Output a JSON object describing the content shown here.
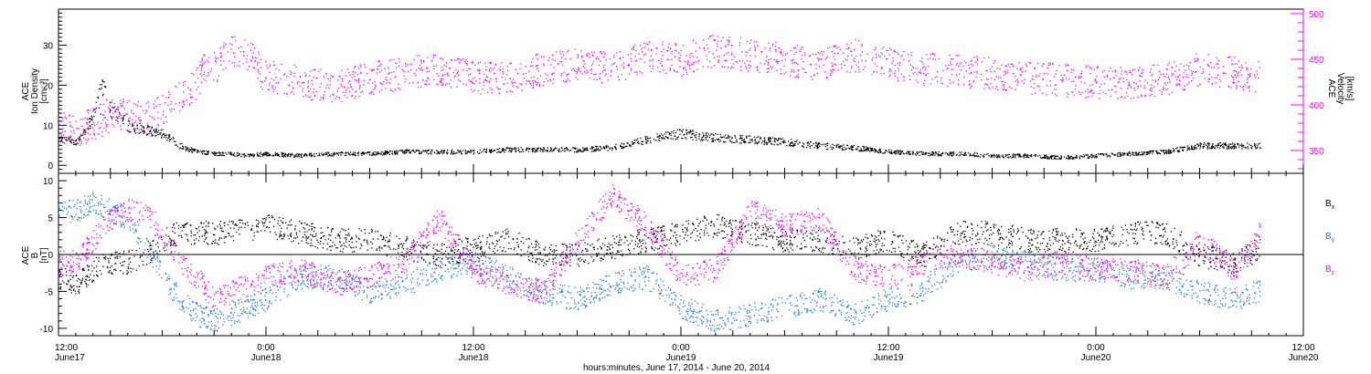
{
  "chart_data": [
    {
      "type": "scatter",
      "panel": "top",
      "xlabel": "hours:minutes, June 17, 2014 - June 20, 2014",
      "x_ticks": [
        {
          "time": "12:00",
          "date": "June17"
        },
        {
          "time": "0:00",
          "date": "June18"
        },
        {
          "time": "12:00",
          "date": "June18"
        },
        {
          "time": "0:00",
          "date": "June19"
        },
        {
          "time": "12:00",
          "date": "June19"
        },
        {
          "time": "0:00",
          "date": "June20"
        },
        {
          "time": "12:00",
          "date": "June20"
        }
      ],
      "xlim_hours": [
        0,
        72
      ],
      "ylabel_left": [
        "ACE",
        "Ion Density",
        "[cm⁻³]"
      ],
      "ylim_left": [
        -2,
        39
      ],
      "yticks_left": [
        0,
        10,
        20,
        30
      ],
      "ylabel_right": [
        "ACE",
        "Velocity",
        "[km/s]"
      ],
      "ylim_right": [
        325,
        505
      ],
      "yticks_right": [
        350,
        400,
        450,
        500
      ],
      "series": [
        {
          "axis": "left",
          "color": "#000000",
          "x": [
            0,
            1,
            2,
            2.5,
            3,
            4,
            5,
            6,
            7,
            8,
            9,
            10,
            11,
            12,
            14,
            16,
            18,
            20,
            22,
            24,
            26,
            28,
            30,
            32,
            34,
            36,
            38,
            40,
            42,
            44,
            46,
            48,
            50,
            52,
            54,
            56,
            58,
            60,
            62,
            64,
            66,
            68,
            69.5
          ],
          "y": [
            7,
            6,
            12,
            20,
            14,
            10,
            9,
            8,
            5,
            3.5,
            3,
            3,
            2.5,
            3,
            2.5,
            3,
            3,
            3.5,
            3.5,
            3.5,
            4,
            4,
            4,
            4.5,
            6.5,
            8,
            7,
            6.5,
            6,
            5,
            4.5,
            3.5,
            3,
            3,
            2.5,
            2.5,
            2,
            2.5,
            3,
            3.5,
            5,
            5,
            5
          ]
        },
        {
          "axis": "right",
          "color": "#ff00ff",
          "x": [
            0,
            1,
            2,
            3,
            4,
            5,
            6,
            7,
            8,
            8.5,
            9,
            10,
            11,
            12,
            13,
            14,
            16,
            18,
            20,
            22,
            24,
            26,
            28,
            30,
            32,
            34,
            36,
            38,
            40,
            42,
            44,
            46,
            47,
            48,
            50,
            52,
            54,
            56,
            58,
            60,
            62,
            64,
            66,
            68,
            69.5
          ],
          "y": [
            375,
            372,
            380,
            388,
            390,
            385,
            395,
            410,
            425,
            445,
            440,
            460,
            455,
            430,
            430,
            425,
            420,
            430,
            435,
            440,
            430,
            430,
            440,
            445,
            440,
            455,
            450,
            460,
            455,
            450,
            445,
            455,
            450,
            445,
            440,
            438,
            435,
            430,
            428,
            425,
            425,
            428,
            440,
            435,
            430
          ]
        }
      ]
    },
    {
      "type": "scatter",
      "panel": "bottom",
      "ylabel": [
        "ACE",
        "B",
        "[nT]"
      ],
      "ylim": [
        -11,
        11
      ],
      "yticks": [
        -10,
        -5,
        0,
        5,
        10
      ],
      "zero_line": true,
      "legend": [
        {
          "label": "B",
          "sub": "x",
          "color": "#000000"
        },
        {
          "label": "B",
          "sub": "y",
          "color": "#1e7bdc"
        },
        {
          "label": "B",
          "sub": "z",
          "color": "#ff00ff"
        }
      ],
      "series": [
        {
          "name": "Bx",
          "color": "#000000",
          "x": [
            0,
            1,
            2,
            3,
            4,
            5,
            6,
            7,
            8,
            10,
            12,
            14,
            16,
            18,
            20,
            22,
            24,
            26,
            28,
            30,
            32,
            34,
            36,
            38,
            40,
            42,
            44,
            46,
            48,
            50,
            52,
            54,
            56,
            58,
            60,
            62,
            64,
            66,
            68,
            69.5
          ],
          "y": [
            -3,
            -4,
            -2,
            -1,
            -1,
            0,
            2,
            3,
            3,
            3,
            4,
            3,
            2,
            2,
            1,
            0,
            1,
            2,
            0,
            0,
            1,
            2,
            3,
            4,
            3,
            2,
            2,
            1,
            2,
            0,
            3,
            3,
            2,
            2,
            2,
            3,
            3,
            0,
            -1,
            1
          ]
        },
        {
          "name": "By",
          "color": "#1e7bdc",
          "x": [
            0,
            1,
            2,
            3,
            4,
            5,
            6,
            7,
            8,
            9,
            10,
            12,
            14,
            16,
            18,
            20,
            22,
            24,
            26,
            28,
            30,
            32,
            34,
            36,
            38,
            40,
            42,
            44,
            46,
            48,
            50,
            52,
            54,
            56,
            58,
            60,
            62,
            64,
            66,
            68,
            69.5
          ],
          "y": [
            6,
            6,
            7,
            6,
            5,
            1,
            -3,
            -6,
            -8,
            -9,
            -8,
            -6,
            -3,
            -3,
            -5,
            -4,
            -2,
            -1,
            -3,
            -5,
            -6,
            -4,
            -3,
            -7,
            -9,
            -8,
            -7,
            -6,
            -8,
            -6,
            -5,
            -1,
            0,
            -1,
            -2,
            -2,
            -3,
            -3,
            -5,
            -6,
            -5
          ]
        },
        {
          "name": "Bz",
          "color": "#ff00ff",
          "x": [
            0,
            1,
            2,
            3,
            4,
            5,
            6,
            7,
            8,
            9,
            10,
            12,
            14,
            16,
            18,
            20,
            22,
            24,
            26,
            28,
            30,
            32,
            34,
            36,
            38,
            40,
            42,
            44,
            46,
            48,
            50,
            52,
            54,
            56,
            58,
            60,
            62,
            64,
            66,
            68,
            69.5
          ],
          "y": [
            -1,
            -1,
            2,
            5,
            6,
            6,
            3,
            -1,
            -3,
            -6,
            -5,
            -3,
            -2,
            -4,
            -3,
            -1,
            5,
            -2,
            -4,
            -5,
            2,
            8,
            4,
            -3,
            -2,
            6,
            4,
            5,
            -2,
            -3,
            -1,
            0,
            -1,
            -2,
            -1,
            -2,
            -2,
            -3,
            2,
            -2,
            3
          ]
        }
      ]
    }
  ]
}
